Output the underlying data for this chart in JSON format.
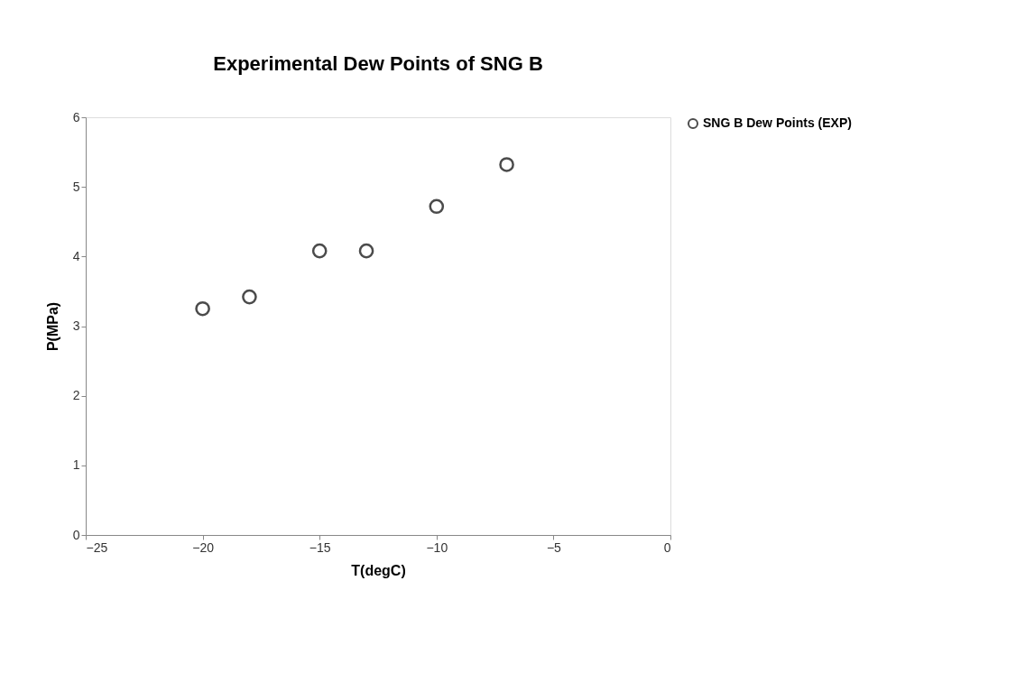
{
  "chart_data": {
    "type": "scatter",
    "title": "Experimental Dew Points of SNG B",
    "xlabel": "T(degC)",
    "ylabel": "P(MPa)",
    "x": [
      -20,
      -18,
      -15,
      -13,
      -10,
      -7
    ],
    "series": [
      {
        "name": "SNG B Dew Points (EXP)",
        "color": "#000000",
        "values": [
          3.25,
          3.42,
          4.08,
          4.08,
          4.72,
          5.32
        ]
      }
    ],
    "xlim": [
      -25,
      0
    ],
    "xticks": [
      -25,
      -20,
      -15,
      -10,
      -5,
      0
    ],
    "ylim": [
      0,
      6
    ],
    "yticks": [
      0,
      1,
      2,
      3,
      4,
      5,
      6
    ],
    "grid": false,
    "legend": "right",
    "marker": "circle"
  }
}
